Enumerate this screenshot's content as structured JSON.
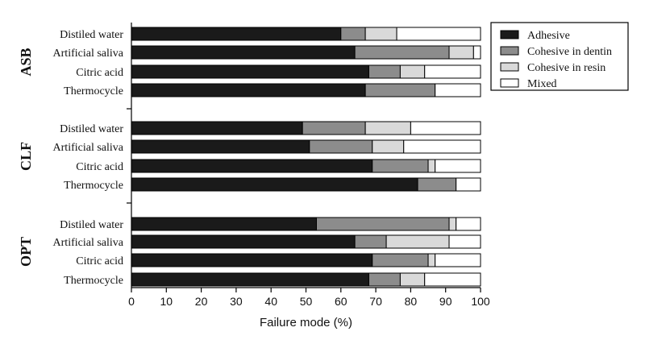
{
  "chart_data": {
    "type": "bar",
    "orientation": "horizontal",
    "stacked": true,
    "xlabel": "Failure mode (%)",
    "xlim": [
      0,
      100
    ],
    "x_ticks": [
      "0",
      "10",
      "20",
      "30",
      "40",
      "50",
      "60",
      "70",
      "80",
      "90",
      "100"
    ],
    "grid": false,
    "legend_position": "top-right",
    "series": [
      {
        "name": "Adhesive",
        "color": "#1a1a1a"
      },
      {
        "name": "Cohesive in dentin",
        "color": "#8c8c8c"
      },
      {
        "name": "Cohesive in resin",
        "color": "#d9d9d9"
      },
      {
        "name": "Mixed",
        "color": "#ffffff"
      }
    ],
    "groups": [
      {
        "name": "ASB",
        "bars": [
          {
            "label": "Distiled water",
            "values": [
              60,
              7,
              9,
              24
            ]
          },
          {
            "label": "Artificial saliva",
            "values": [
              64,
              27,
              7,
              2
            ]
          },
          {
            "label": "Citric acid",
            "values": [
              68,
              9,
              7,
              16
            ]
          },
          {
            "label": "Thermocycle",
            "values": [
              67,
              20,
              0,
              13
            ]
          }
        ]
      },
      {
        "name": "CLF",
        "bars": [
          {
            "label": "Distiled water",
            "values": [
              49,
              18,
              13,
              20
            ]
          },
          {
            "label": "Artificial saliva",
            "values": [
              51,
              18,
              9,
              22
            ]
          },
          {
            "label": "Citric acid",
            "values": [
              69,
              16,
              2,
              13
            ]
          },
          {
            "label": "Thermocycle",
            "values": [
              82,
              11,
              0,
              7
            ]
          }
        ]
      },
      {
        "name": "OPT",
        "bars": [
          {
            "label": "Distiled water",
            "values": [
              53,
              38,
              2,
              7
            ]
          },
          {
            "label": "Artificial saliva",
            "values": [
              64,
              9,
              18,
              9
            ]
          },
          {
            "label": "Citric acid",
            "values": [
              69,
              16,
              2,
              13
            ]
          },
          {
            "label": "Thermocycle",
            "values": [
              68,
              9,
              7,
              16
            ]
          }
        ]
      }
    ]
  }
}
